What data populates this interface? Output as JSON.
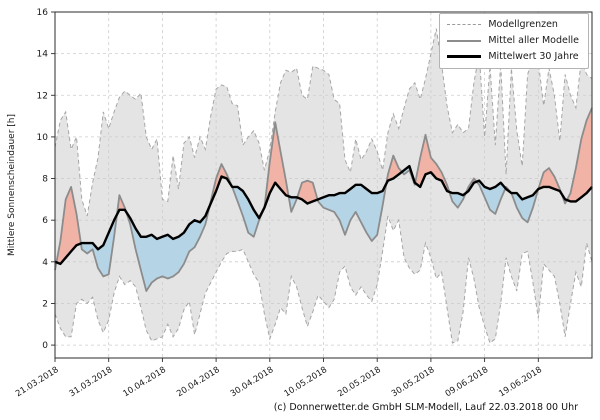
{
  "caption": "(c) Donnerwetter.de GmbH SLM-Modell, Lauf 22.03.2018 00 Uhr",
  "legend": {
    "items": [
      {
        "label": "Modellgrenzen",
        "style": "dashed-gray"
      },
      {
        "label": "Mittel aller Modelle",
        "style": "solid-gray"
      },
      {
        "label": "Mittelwert 30 Jahre",
        "style": "solid-black"
      }
    ]
  },
  "chart_data": {
    "type": "line",
    "title": "",
    "xlabel": "",
    "ylabel": "Mittlere Sonnenscheindauer [h]",
    "ylim": [
      -0.62,
      16
    ],
    "y_ticks": [
      0,
      2,
      4,
      6,
      8,
      10,
      12,
      14,
      16
    ],
    "grid": true,
    "legend_position": "upper right",
    "x_unit": "days since 21.03.2018, daily values",
    "x_range_days": [
      0,
      100
    ],
    "x_tick_days": [
      0,
      10,
      20,
      30,
      40,
      50,
      60,
      70,
      80,
      90
    ],
    "x_tick_labels": [
      "21.03.2018",
      "31.03.2018",
      "10.04.2018",
      "20.04.2018",
      "30.04.2018",
      "10.05.2018",
      "20.05.2018",
      "30.05.2018",
      "09.06.2018",
      "19.06.2018"
    ],
    "colors": {
      "band_fill": "#e4e4e4",
      "bound_line": "#a6a6a6",
      "model_mean_line": "#8c8c8c",
      "climate_mean_line": "#000000",
      "above_normal_fill": "#f0b3a6",
      "below_normal_fill": "#b5d5e6",
      "grid_line": "#cdcdcd",
      "spine": "#2b2b2b"
    },
    "series": [
      {
        "name": "Modellgrenzen (obere Grenze)",
        "role": "upper_bound",
        "style": "dashed",
        "values": [
          9.5,
          10.8,
          11.2,
          9.4,
          10.0,
          7.0,
          6.2,
          7.8,
          9.0,
          11.2,
          10.4,
          11.2,
          11.9,
          12.2,
          12.0,
          11.8,
          12.1,
          10.0,
          9.4,
          9.9,
          7.0,
          6.9,
          9.1,
          7.5,
          9.7,
          10.0,
          9.0,
          10.0,
          9.4,
          11.0,
          12.3,
          12.5,
          12.4,
          11.6,
          11.5,
          9.6,
          10.0,
          10.3,
          9.7,
          8.4,
          9.4,
          11.2,
          12.6,
          13.2,
          13.1,
          13.3,
          12.0,
          11.8,
          13.4,
          13.3,
          13.2,
          13.0,
          11.8,
          11.6,
          8.9,
          8.3,
          9.9,
          8.9,
          9.3,
          9.9,
          9.3,
          8.4,
          10.2,
          11.1,
          10.4,
          11.4,
          12.3,
          12.6,
          11.8,
          12.8,
          14.0,
          15.2,
          13.5,
          11.5,
          10.2,
          10.6,
          10.2,
          10.4,
          12.6,
          14.0,
          10.0,
          13.4,
          9.6,
          13.5,
          8.2,
          13.3,
          10.3,
          8.6,
          13.0,
          13.8,
          13.6,
          11.5,
          13.3,
          12.0,
          9.8,
          13.0,
          12.0,
          11.4,
          13.7,
          13.0,
          12.8
        ]
      },
      {
        "name": "Modellgrenzen (untere Grenze)",
        "role": "lower_bound",
        "style": "dashed",
        "values": [
          1.5,
          0.8,
          0.4,
          0.4,
          2.0,
          2.2,
          2.0,
          2.3,
          1.2,
          0.6,
          1.2,
          2.5,
          3.3,
          2.9,
          3.1,
          2.8,
          1.8,
          0.7,
          0.2,
          0.3,
          0.4,
          1.0,
          0.4,
          0.8,
          1.7,
          2.1,
          0.5,
          1.5,
          2.5,
          3.0,
          3.5,
          4.0,
          4.4,
          4.5,
          4.5,
          4.6,
          4.0,
          3.4,
          3.0,
          1.5,
          0.3,
          1.0,
          1.8,
          1.5,
          3.3,
          2.8,
          1.8,
          0.9,
          1.6,
          2.4,
          2.1,
          1.8,
          2.2,
          3.5,
          3.8,
          2.8,
          2.4,
          2.8,
          2.4,
          2.1,
          2.9,
          4.5,
          6.2,
          5.5,
          6.0,
          4.2,
          3.7,
          3.4,
          3.6,
          4.9,
          4.2,
          3.2,
          3.5,
          1.8,
          0.1,
          0.2,
          1.6,
          4.2,
          3.2,
          1.8,
          0.9,
          0.1,
          0.3,
          2.0,
          4.2,
          3.3,
          2.6,
          4.4,
          4.5,
          3.0,
          1.3,
          3.9,
          3.6,
          3.3,
          2.0,
          0.4,
          2.0,
          3.5,
          2.8,
          4.9,
          4.0
        ]
      },
      {
        "name": "Mittel aller Modelle",
        "role": "model_mean",
        "style": "solid-gray",
        "values": [
          3.6,
          5.0,
          7.0,
          7.6,
          6.3,
          4.6,
          4.4,
          4.6,
          3.7,
          3.3,
          3.4,
          5.2,
          7.2,
          6.6,
          5.8,
          4.6,
          3.6,
          2.6,
          3.0,
          3.2,
          3.3,
          3.2,
          3.3,
          3.5,
          3.9,
          4.5,
          4.7,
          5.2,
          5.8,
          6.9,
          8.0,
          8.7,
          8.2,
          7.6,
          6.9,
          6.2,
          5.4,
          5.2,
          6.0,
          6.6,
          8.8,
          10.7,
          9.3,
          7.9,
          6.4,
          7.0,
          7.8,
          7.9,
          7.8,
          6.9,
          6.6,
          6.5,
          6.4,
          6.0,
          5.3,
          6.0,
          6.4,
          5.9,
          5.4,
          5.0,
          5.3,
          6.7,
          8.2,
          9.1,
          8.5,
          8.2,
          8.4,
          7.7,
          9.0,
          10.1,
          9.0,
          8.7,
          8.3,
          7.7,
          6.9,
          6.6,
          7.0,
          7.6,
          8.0,
          7.7,
          7.1,
          6.5,
          6.3,
          7.0,
          7.6,
          7.3,
          6.6,
          6.1,
          5.9,
          6.6,
          7.5,
          8.3,
          8.5,
          8.1,
          7.5,
          6.8,
          7.3,
          8.5,
          9.9,
          10.8,
          11.4
        ]
      },
      {
        "name": "Mittelwert 30 Jahre",
        "role": "climate_mean",
        "style": "solid-black",
        "values": [
          4.0,
          3.9,
          4.2,
          4.5,
          4.8,
          4.9,
          4.9,
          4.9,
          4.6,
          4.8,
          5.4,
          6.0,
          6.5,
          6.5,
          6.1,
          5.6,
          5.2,
          5.2,
          5.3,
          5.1,
          5.2,
          5.3,
          5.1,
          5.2,
          5.4,
          5.8,
          6.0,
          5.9,
          6.2,
          6.8,
          7.4,
          8.1,
          8.0,
          7.6,
          7.6,
          7.4,
          7.0,
          6.5,
          6.1,
          6.6,
          7.3,
          7.8,
          7.5,
          7.2,
          7.1,
          7.1,
          7.0,
          6.8,
          6.9,
          7.0,
          7.1,
          7.2,
          7.2,
          7.3,
          7.3,
          7.5,
          7.7,
          7.7,
          7.5,
          7.3,
          7.3,
          7.4,
          7.9,
          8.0,
          8.2,
          8.4,
          8.6,
          7.8,
          7.6,
          8.2,
          8.3,
          8.0,
          7.9,
          7.4,
          7.3,
          7.3,
          7.2,
          7.4,
          7.8,
          7.9,
          7.6,
          7.5,
          7.6,
          7.8,
          7.5,
          7.3,
          7.3,
          7.0,
          7.1,
          7.2,
          7.5,
          7.6,
          7.6,
          7.5,
          7.4,
          7.0,
          6.9,
          6.9,
          7.1,
          7.3,
          7.6
        ]
      }
    ]
  }
}
